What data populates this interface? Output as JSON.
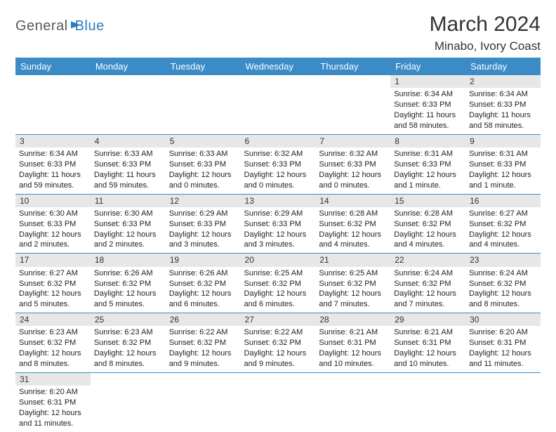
{
  "brand": {
    "part1": "General",
    "part2": "Blue"
  },
  "title": "March 2024",
  "location": "Minabo, Ivory Coast",
  "colors": {
    "header_bg": "#3b8bc7",
    "header_fg": "#ffffff",
    "daynum_bg": "#e7e7e7",
    "row_border": "#3b8bc7",
    "brand_gray": "#5a5a5a",
    "brand_blue": "#2f7bbf"
  },
  "weekdays": [
    "Sunday",
    "Monday",
    "Tuesday",
    "Wednesday",
    "Thursday",
    "Friday",
    "Saturday"
  ],
  "weeks": [
    [
      {
        "n": "",
        "sr": "",
        "ss": "",
        "dl": ""
      },
      {
        "n": "",
        "sr": "",
        "ss": "",
        "dl": ""
      },
      {
        "n": "",
        "sr": "",
        "ss": "",
        "dl": ""
      },
      {
        "n": "",
        "sr": "",
        "ss": "",
        "dl": ""
      },
      {
        "n": "",
        "sr": "",
        "ss": "",
        "dl": ""
      },
      {
        "n": "1",
        "sr": "Sunrise: 6:34 AM",
        "ss": "Sunset: 6:33 PM",
        "dl": "Daylight: 11 hours and 58 minutes."
      },
      {
        "n": "2",
        "sr": "Sunrise: 6:34 AM",
        "ss": "Sunset: 6:33 PM",
        "dl": "Daylight: 11 hours and 58 minutes."
      }
    ],
    [
      {
        "n": "3",
        "sr": "Sunrise: 6:34 AM",
        "ss": "Sunset: 6:33 PM",
        "dl": "Daylight: 11 hours and 59 minutes."
      },
      {
        "n": "4",
        "sr": "Sunrise: 6:33 AM",
        "ss": "Sunset: 6:33 PM",
        "dl": "Daylight: 11 hours and 59 minutes."
      },
      {
        "n": "5",
        "sr": "Sunrise: 6:33 AM",
        "ss": "Sunset: 6:33 PM",
        "dl": "Daylight: 12 hours and 0 minutes."
      },
      {
        "n": "6",
        "sr": "Sunrise: 6:32 AM",
        "ss": "Sunset: 6:33 PM",
        "dl": "Daylight: 12 hours and 0 minutes."
      },
      {
        "n": "7",
        "sr": "Sunrise: 6:32 AM",
        "ss": "Sunset: 6:33 PM",
        "dl": "Daylight: 12 hours and 0 minutes."
      },
      {
        "n": "8",
        "sr": "Sunrise: 6:31 AM",
        "ss": "Sunset: 6:33 PM",
        "dl": "Daylight: 12 hours and 1 minute."
      },
      {
        "n": "9",
        "sr": "Sunrise: 6:31 AM",
        "ss": "Sunset: 6:33 PM",
        "dl": "Daylight: 12 hours and 1 minute."
      }
    ],
    [
      {
        "n": "10",
        "sr": "Sunrise: 6:30 AM",
        "ss": "Sunset: 6:33 PM",
        "dl": "Daylight: 12 hours and 2 minutes."
      },
      {
        "n": "11",
        "sr": "Sunrise: 6:30 AM",
        "ss": "Sunset: 6:33 PM",
        "dl": "Daylight: 12 hours and 2 minutes."
      },
      {
        "n": "12",
        "sr": "Sunrise: 6:29 AM",
        "ss": "Sunset: 6:33 PM",
        "dl": "Daylight: 12 hours and 3 minutes."
      },
      {
        "n": "13",
        "sr": "Sunrise: 6:29 AM",
        "ss": "Sunset: 6:33 PM",
        "dl": "Daylight: 12 hours and 3 minutes."
      },
      {
        "n": "14",
        "sr": "Sunrise: 6:28 AM",
        "ss": "Sunset: 6:32 PM",
        "dl": "Daylight: 12 hours and 4 minutes."
      },
      {
        "n": "15",
        "sr": "Sunrise: 6:28 AM",
        "ss": "Sunset: 6:32 PM",
        "dl": "Daylight: 12 hours and 4 minutes."
      },
      {
        "n": "16",
        "sr": "Sunrise: 6:27 AM",
        "ss": "Sunset: 6:32 PM",
        "dl": "Daylight: 12 hours and 4 minutes."
      }
    ],
    [
      {
        "n": "17",
        "sr": "Sunrise: 6:27 AM",
        "ss": "Sunset: 6:32 PM",
        "dl": "Daylight: 12 hours and 5 minutes."
      },
      {
        "n": "18",
        "sr": "Sunrise: 6:26 AM",
        "ss": "Sunset: 6:32 PM",
        "dl": "Daylight: 12 hours and 5 minutes."
      },
      {
        "n": "19",
        "sr": "Sunrise: 6:26 AM",
        "ss": "Sunset: 6:32 PM",
        "dl": "Daylight: 12 hours and 6 minutes."
      },
      {
        "n": "20",
        "sr": "Sunrise: 6:25 AM",
        "ss": "Sunset: 6:32 PM",
        "dl": "Daylight: 12 hours and 6 minutes."
      },
      {
        "n": "21",
        "sr": "Sunrise: 6:25 AM",
        "ss": "Sunset: 6:32 PM",
        "dl": "Daylight: 12 hours and 7 minutes."
      },
      {
        "n": "22",
        "sr": "Sunrise: 6:24 AM",
        "ss": "Sunset: 6:32 PM",
        "dl": "Daylight: 12 hours and 7 minutes."
      },
      {
        "n": "23",
        "sr": "Sunrise: 6:24 AM",
        "ss": "Sunset: 6:32 PM",
        "dl": "Daylight: 12 hours and 8 minutes."
      }
    ],
    [
      {
        "n": "24",
        "sr": "Sunrise: 6:23 AM",
        "ss": "Sunset: 6:32 PM",
        "dl": "Daylight: 12 hours and 8 minutes."
      },
      {
        "n": "25",
        "sr": "Sunrise: 6:23 AM",
        "ss": "Sunset: 6:32 PM",
        "dl": "Daylight: 12 hours and 8 minutes."
      },
      {
        "n": "26",
        "sr": "Sunrise: 6:22 AM",
        "ss": "Sunset: 6:32 PM",
        "dl": "Daylight: 12 hours and 9 minutes."
      },
      {
        "n": "27",
        "sr": "Sunrise: 6:22 AM",
        "ss": "Sunset: 6:32 PM",
        "dl": "Daylight: 12 hours and 9 minutes."
      },
      {
        "n": "28",
        "sr": "Sunrise: 6:21 AM",
        "ss": "Sunset: 6:31 PM",
        "dl": "Daylight: 12 hours and 10 minutes."
      },
      {
        "n": "29",
        "sr": "Sunrise: 6:21 AM",
        "ss": "Sunset: 6:31 PM",
        "dl": "Daylight: 12 hours and 10 minutes."
      },
      {
        "n": "30",
        "sr": "Sunrise: 6:20 AM",
        "ss": "Sunset: 6:31 PM",
        "dl": "Daylight: 12 hours and 11 minutes."
      }
    ],
    [
      {
        "n": "31",
        "sr": "Sunrise: 6:20 AM",
        "ss": "Sunset: 6:31 PM",
        "dl": "Daylight: 12 hours and 11 minutes."
      },
      {
        "n": "",
        "sr": "",
        "ss": "",
        "dl": ""
      },
      {
        "n": "",
        "sr": "",
        "ss": "",
        "dl": ""
      },
      {
        "n": "",
        "sr": "",
        "ss": "",
        "dl": ""
      },
      {
        "n": "",
        "sr": "",
        "ss": "",
        "dl": ""
      },
      {
        "n": "",
        "sr": "",
        "ss": "",
        "dl": ""
      },
      {
        "n": "",
        "sr": "",
        "ss": "",
        "dl": ""
      }
    ]
  ]
}
